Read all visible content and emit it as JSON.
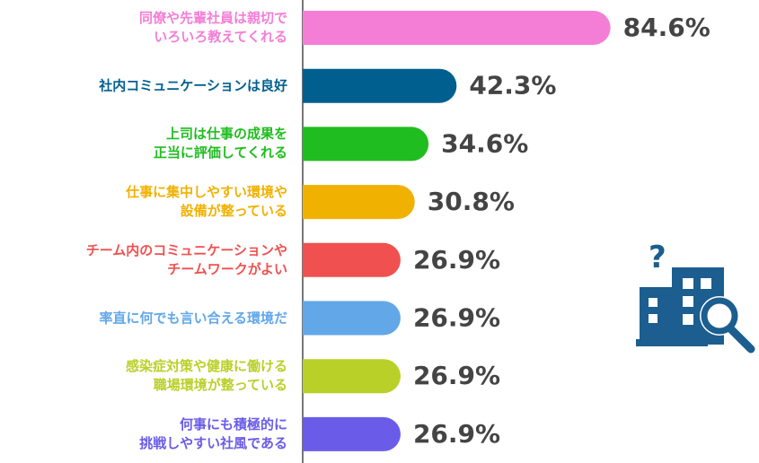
{
  "chart_data": {
    "type": "bar",
    "orientation": "horizontal",
    "categories": [
      "同僚や先輩社員は親切で\nいろいろ教えてくれる",
      "社内コミュニケーションは良好",
      "上司は仕事の成果を\n正当に評価してくれる",
      "仕事に集中しやすい環境や\n設備が整っている",
      "チーム内のコミュニケーションや\nチームワークがよい",
      "率直に何でも言い合える環境だ",
      "感染症対策や健康に働ける\n職場環境が整っている",
      "何事にも積極的に\n挑戦しやすい社風である"
    ],
    "values": [
      84.6,
      42.3,
      34.6,
      30.8,
      26.9,
      26.9,
      26.9,
      26.9
    ],
    "value_labels": [
      "84.6%",
      "42.3%",
      "34.6%",
      "30.8%",
      "26.9%",
      "26.9%",
      "26.9%",
      "26.9%"
    ],
    "colors": [
      "#f47ed6",
      "#005f8f",
      "#1fbd1f",
      "#f1b100",
      "#f05050",
      "#62a7e8",
      "#b9d028",
      "#6a5ce8"
    ],
    "xlim": [
      0,
      100
    ]
  }
}
